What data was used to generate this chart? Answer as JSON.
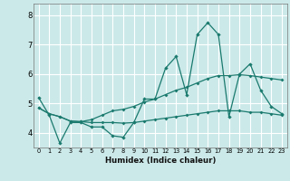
{
  "xlabel": "Humidex (Indice chaleur)",
  "bg_color": "#cce9e9",
  "grid_color": "#ffffff",
  "line_color": "#1a7a6e",
  "x_ticks": [
    0,
    1,
    2,
    3,
    4,
    5,
    6,
    7,
    8,
    9,
    10,
    11,
    12,
    13,
    14,
    15,
    16,
    17,
    18,
    19,
    20,
    21,
    22,
    23
  ],
  "y_ticks": [
    4,
    5,
    6,
    7,
    8
  ],
  "ylim": [
    3.5,
    8.4
  ],
  "xlim": [
    -0.5,
    23.5
  ],
  "series1_y": [
    5.2,
    4.6,
    3.65,
    4.35,
    4.35,
    4.2,
    4.2,
    3.9,
    3.85,
    4.35,
    5.15,
    5.15,
    6.2,
    6.6,
    5.3,
    7.35,
    7.75,
    7.35,
    4.55,
    6.0,
    6.35,
    5.45,
    4.9,
    4.65
  ],
  "series2_y": [
    4.85,
    4.65,
    4.55,
    4.4,
    4.38,
    4.35,
    4.35,
    4.35,
    4.33,
    4.35,
    4.4,
    4.45,
    4.5,
    4.55,
    4.6,
    4.65,
    4.7,
    4.75,
    4.75,
    4.75,
    4.7,
    4.7,
    4.65,
    4.6
  ],
  "series3_y": [
    4.85,
    4.65,
    4.55,
    4.4,
    4.38,
    4.45,
    4.6,
    4.75,
    4.8,
    4.9,
    5.05,
    5.15,
    5.3,
    5.45,
    5.55,
    5.7,
    5.85,
    5.95,
    5.95,
    5.98,
    5.95,
    5.9,
    5.85,
    5.8
  ]
}
